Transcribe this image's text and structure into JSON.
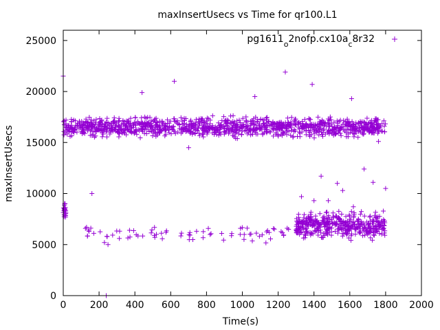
{
  "chart_data": {
    "type": "scatter",
    "title": "maxInsertUsecs vs Time for qr100.L1",
    "xlabel": "Time(s)",
    "ylabel": "maxInsertUsecs",
    "xlim": [
      0,
      2000
    ],
    "ylim": [
      0,
      26000
    ],
    "xticks": [
      0,
      200,
      400,
      600,
      800,
      1000,
      1200,
      1400,
      1600,
      1800,
      2000
    ],
    "yticks": [
      0,
      5000,
      10000,
      15000,
      20000,
      25000
    ],
    "grid": false,
    "legend_position": "top-right",
    "marker": "+",
    "series": [
      {
        "name": "pg1611_o2nofp.cx10a_c8r32",
        "legend_parts": [
          "pg1611",
          "o",
          "2nofp.cx10a",
          "c",
          "8r32"
        ],
        "color": "#9400d3",
        "bands": [
          {
            "x_start": 0,
            "x_end": 1800,
            "y_low": 15200,
            "y_high": 17800,
            "count": 1200,
            "desc": "main band"
          },
          {
            "x_start": 0,
            "x_end": 15,
            "y_low": 7200,
            "y_high": 9300,
            "count": 22,
            "desc": "startup cluster"
          },
          {
            "x_start": 100,
            "x_end": 1300,
            "y_low": 4900,
            "y_high": 7300,
            "count": 70,
            "desc": "sparse low points"
          },
          {
            "x_start": 1300,
            "x_end": 1800,
            "y_low": 5200,
            "y_high": 8600,
            "count": 420,
            "desc": "dense low band"
          }
        ],
        "outliers": [
          [
            0,
            21500
          ],
          [
            10,
            9000
          ],
          [
            160,
            10000
          ],
          [
            240,
            0
          ],
          [
            230,
            5200
          ],
          [
            250,
            5000
          ],
          [
            620,
            21000
          ],
          [
            1240,
            21900
          ],
          [
            1390,
            20700
          ],
          [
            1610,
            19300
          ],
          [
            1680,
            12400
          ],
          [
            1440,
            11700
          ],
          [
            1800,
            10500
          ],
          [
            1730,
            11100
          ],
          [
            1560,
            10300
          ],
          [
            130,
            6700
          ],
          [
            370,
            6400
          ],
          [
            520,
            6000
          ],
          [
            1230,
            5900
          ],
          [
            1330,
            9700
          ],
          [
            1480,
            9300
          ],
          [
            1530,
            11000
          ],
          [
            1400,
            9300
          ],
          [
            1620,
            8700
          ],
          [
            440,
            19900
          ],
          [
            1760,
            15100
          ],
          [
            1070,
            19500
          ],
          [
            700,
            14500
          ]
        ]
      }
    ]
  }
}
